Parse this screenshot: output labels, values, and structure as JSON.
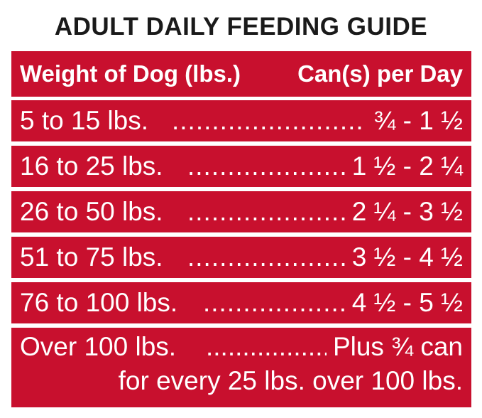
{
  "title": "ADULT DAILY FEEDING GUIDE",
  "colors": {
    "row_background": "#c8102e",
    "row_text": "#ffffff",
    "title_text": "#1a1a1a"
  },
  "table": {
    "header": {
      "weight": "Weight of Dog (lbs.)",
      "cans": "Can(s) per Day"
    },
    "rows": [
      {
        "weight": "5 to 15 lbs.",
        "cans": "¾ - 1 ½"
      },
      {
        "weight": "16 to 25 lbs.",
        "cans": "1 ½ - 2 ¼"
      },
      {
        "weight": "26 to 50 lbs.",
        "cans": "2 ¼ - 3 ½"
      },
      {
        "weight": "51 to 75 lbs.",
        "cans": "3 ½ - 4 ½"
      },
      {
        "weight": "76 to 100 lbs.",
        "cans": "4 ½ - 5 ½"
      }
    ],
    "last_row": {
      "weight": "Over 100 lbs.",
      "cans": "Plus ¾ can",
      "note": "for every 25 lbs. over 100 lbs."
    }
  }
}
